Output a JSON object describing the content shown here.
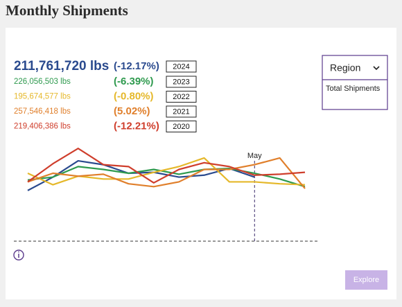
{
  "header": {
    "title": "Monthly Shipments"
  },
  "stats": [
    {
      "total": "211,761,720 lbs",
      "change": "(-12.17%)"
    },
    {
      "total": "226,056,503 lbs",
      "change": "(-6.39%)"
    },
    {
      "total": "195,674,577 lbs",
      "change": "(-0.80%)"
    },
    {
      "total": "257,546,418 lbs",
      "change": "(5.02%)"
    },
    {
      "total": "219,406,386 lbs",
      "change": "(-12.21%)"
    }
  ],
  "filter": {
    "label": "Region",
    "option": "Total Shipments"
  },
  "button": {
    "label": "Explore"
  },
  "chart_data": {
    "type": "line",
    "categories": [
      null,
      null,
      null,
      null,
      null,
      null,
      null,
      null,
      null,
      "May",
      null,
      null
    ],
    "ylim": [
      0,
      100
    ],
    "series": [
      {
        "name": "2024",
        "color": "#2a4a8e",
        "values": [
          53,
          67,
          84,
          80,
          71,
          72,
          67,
          69,
          76,
          67,
          null,
          null
        ]
      },
      {
        "name": "2023",
        "color": "#2e9a4e",
        "values": [
          64,
          67,
          78,
          75,
          71,
          75,
          70,
          75,
          76,
          71,
          65,
          57
        ]
      },
      {
        "name": "2022",
        "color": "#e5b82a",
        "values": [
          71,
          59,
          68,
          65,
          65,
          72,
          78,
          87,
          62,
          62,
          60,
          59
        ]
      },
      {
        "name": "2021",
        "color": "#e07f2b",
        "values": [
          62,
          71,
          68,
          70,
          60,
          57,
          62,
          75,
          75,
          80,
          87,
          55
        ]
      },
      {
        "name": "2020",
        "color": "#cf3e2c",
        "values": [
          62,
          81,
          97,
          80,
          78,
          61,
          75,
          82,
          78,
          69,
          70,
          72
        ]
      }
    ]
  }
}
